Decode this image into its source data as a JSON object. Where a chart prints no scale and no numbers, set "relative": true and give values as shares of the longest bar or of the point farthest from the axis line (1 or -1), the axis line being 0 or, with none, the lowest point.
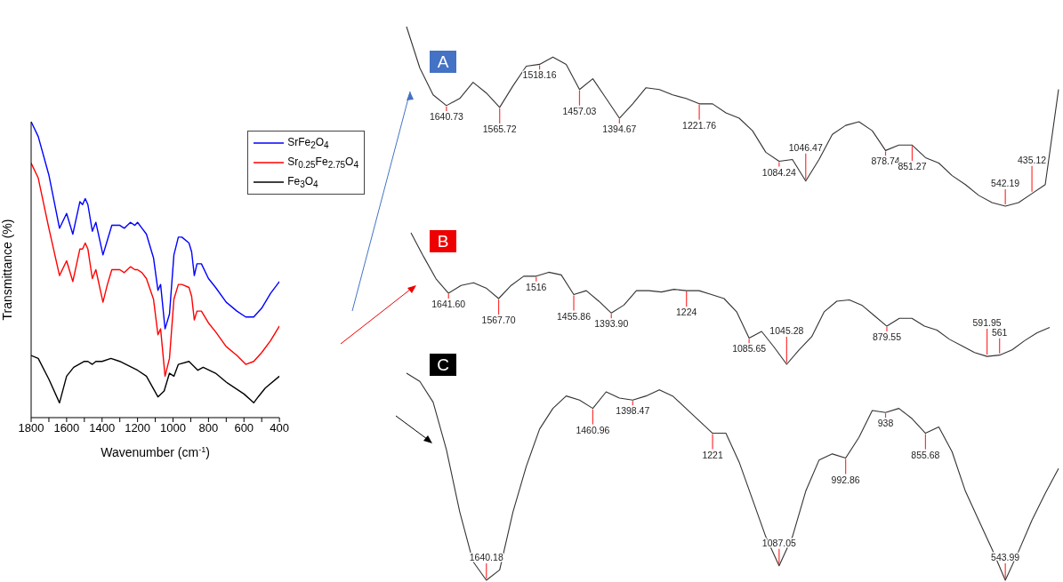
{
  "chart_data": [
    {
      "type": "line",
      "xlabel": "Wavenumber (cm$^{-1}$)",
      "ylabel": "Transmittance (%)",
      "relative": true,
      "legend": "top right",
      "xlim": [
        1800,
        400
      ],
      "xticks": [
        1800,
        {
          "value": 1700,
          "label": null
        },
        1600,
        {
          "value": 1500,
          "label": null
        },
        1400,
        {
          "value": 1300,
          "label": null
        },
        1200,
        {
          "value": 1100,
          "label": null
        },
        1000,
        {
          "value": 900,
          "label": null
        },
        800,
        {
          "value": 700,
          "label": null
        },
        600,
        {
          "value": 500,
          "label": null
        },
        400
      ],
      "series": [
        {
          "name": "SrFe$_{2}$O$_{4}$",
          "color": "#0000ff",
          "x": [
            1800,
            1760,
            1700,
            1640,
            1600,
            1565,
            1525,
            1510,
            1495,
            1480,
            1455,
            1435,
            1395,
            1370,
            1345,
            1300,
            1275,
            1240,
            1215,
            1200,
            1175,
            1150,
            1110,
            1085,
            1070,
            1045,
            1020,
            995,
            970,
            950,
            910,
            895,
            880,
            865,
            840,
            800,
            760,
            700,
            640,
            590,
            545,
            500,
            450,
            400
          ],
          "values": [
            1.0,
            0.95,
            0.82,
            0.64,
            0.69,
            0.62,
            0.73,
            0.72,
            0.74,
            0.72,
            0.63,
            0.66,
            0.55,
            0.6,
            0.65,
            0.65,
            0.64,
            0.66,
            0.65,
            0.66,
            0.64,
            0.62,
            0.54,
            0.43,
            0.45,
            0.3,
            0.35,
            0.55,
            0.61,
            0.61,
            0.59,
            0.56,
            0.48,
            0.52,
            0.52,
            0.47,
            0.44,
            0.39,
            0.36,
            0.34,
            0.34,
            0.37,
            0.42,
            0.46
          ]
        },
        {
          "name": "Sr$_{0.25}$Fe$_{2.75}$O$_{4}$",
          "color": "#ff0000",
          "x": [
            1800,
            1760,
            1700,
            1640,
            1600,
            1565,
            1525,
            1510,
            1495,
            1480,
            1455,
            1435,
            1395,
            1370,
            1345,
            1300,
            1275,
            1240,
            1215,
            1200,
            1175,
            1150,
            1110,
            1085,
            1070,
            1045,
            1020,
            995,
            970,
            950,
            910,
            895,
            880,
            865,
            840,
            800,
            760,
            700,
            640,
            590,
            545,
            500,
            450,
            400
          ],
          "values": [
            0.86,
            0.81,
            0.64,
            0.48,
            0.53,
            0.46,
            0.57,
            0.57,
            0.59,
            0.57,
            0.47,
            0.5,
            0.39,
            0.45,
            0.5,
            0.5,
            0.49,
            0.51,
            0.5,
            0.5,
            0.49,
            0.47,
            0.4,
            0.28,
            0.3,
            0.14,
            0.2,
            0.4,
            0.45,
            0.45,
            0.44,
            0.41,
            0.33,
            0.36,
            0.36,
            0.32,
            0.29,
            0.24,
            0.21,
            0.18,
            0.19,
            0.22,
            0.26,
            0.31
          ]
        },
        {
          "name": "Fe$_{3}$O$_{4}$",
          "color": "#000000",
          "x": [
            1800,
            1760,
            1700,
            1640,
            1600,
            1560,
            1500,
            1480,
            1455,
            1435,
            1400,
            1350,
            1300,
            1200,
            1150,
            1085,
            1050,
            1020,
            995,
            970,
            910,
            860,
            830,
            760,
            700,
            600,
            545,
            520,
            480,
            400
          ],
          "values": [
            0.21,
            0.2,
            0.13,
            0.05,
            0.14,
            0.17,
            0.19,
            0.19,
            0.18,
            0.19,
            0.19,
            0.2,
            0.19,
            0.16,
            0.14,
            0.07,
            0.09,
            0.15,
            0.14,
            0.18,
            0.19,
            0.16,
            0.17,
            0.15,
            0.12,
            0.08,
            0.05,
            0.07,
            0.1,
            0.14
          ]
        }
      ]
    },
    {
      "type": "line",
      "title": "A",
      "relative": true,
      "categories": [
        null,
        null,
        null,
        "1640.73",
        null,
        null,
        null,
        "1565.72",
        null,
        null,
        "1518.16",
        null,
        null,
        "1457.03",
        null,
        null,
        "1394.67",
        null,
        null,
        null,
        null,
        null,
        "1221.76",
        null,
        null,
        null,
        null,
        null,
        "1084.24",
        null,
        "1046.47",
        null,
        null,
        null,
        null,
        null,
        "878.74",
        null,
        "851.27",
        null,
        null,
        null,
        null,
        null,
        null,
        "542.19",
        null,
        "435.12",
        null,
        null
      ],
      "series": [
        {
          "color": "#333333",
          "values": [
            1.0,
            0.77,
            0.62,
            0.56,
            0.6,
            0.69,
            0.63,
            0.55,
            0.67,
            0.78,
            0.79,
            0.83,
            0.79,
            0.65,
            0.71,
            0.6,
            0.49,
            0.57,
            0.66,
            0.65,
            0.62,
            0.6,
            0.57,
            0.57,
            0.52,
            0.49,
            0.42,
            0.3,
            0.25,
            0.26,
            0.14,
            0.26,
            0.4,
            0.45,
            0.47,
            0.42,
            0.31,
            0.34,
            0.34,
            0.27,
            0.24,
            0.17,
            0.12,
            0.06,
            0.02,
            0,
            0.02,
            0.07,
            0.12,
            0.65
          ]
        }
      ]
    },
    {
      "type": "line",
      "title": "B",
      "relative": true,
      "categories": [
        null,
        null,
        null,
        "1641.60",
        null,
        null,
        null,
        "1567.70",
        null,
        null,
        "1516",
        null,
        null,
        "1455.86",
        null,
        null,
        "1393.90",
        null,
        null,
        null,
        null,
        null,
        "1224",
        null,
        null,
        null,
        null,
        "1085.65",
        null,
        null,
        "1045.28",
        null,
        null,
        null,
        null,
        null,
        null,
        null,
        "879.55",
        null,
        null,
        null,
        null,
        null,
        null,
        null,
        "591.95",
        "561",
        null,
        null,
        null,
        null
      ],
      "series": [
        {
          "color": "#333333",
          "values": [
            1.0,
            0.82,
            0.65,
            0.54,
            0.6,
            0.62,
            0.58,
            0.5,
            0.6,
            0.67,
            0.67,
            0.7,
            0.68,
            0.53,
            0.56,
            0.48,
            0.39,
            0.45,
            0.56,
            0.56,
            0.55,
            0.57,
            0.56,
            0.56,
            0.53,
            0.5,
            0.4,
            0.2,
            0.25,
            0.13,
            0,
            0.11,
            0.21,
            0.4,
            0.48,
            0.49,
            0.45,
            0.37,
            0.29,
            0.35,
            0.35,
            0.29,
            0.26,
            0.19,
            0.14,
            0.09,
            0.06,
            0.07,
            0.11,
            0.18,
            0.24,
            0.28
          ]
        }
      ]
    },
    {
      "type": "line",
      "title": "C",
      "relative": true,
      "categories": [
        null,
        null,
        null,
        null,
        null,
        null,
        "1640.18",
        null,
        null,
        null,
        null,
        null,
        null,
        null,
        "1460.96",
        null,
        null,
        "1398.47",
        null,
        null,
        null,
        null,
        null,
        "1221",
        null,
        null,
        null,
        null,
        "1087.05",
        null,
        null,
        null,
        null,
        "992.86",
        null,
        null,
        "938",
        null,
        null,
        "855.68",
        null,
        null,
        null,
        null,
        null,
        "543.99",
        null,
        null,
        null,
        null
      ],
      "series": [
        {
          "color": "#333333",
          "values": [
            1.0,
            0.96,
            0.86,
            0.63,
            0.33,
            0.09,
            0,
            0.05,
            0.33,
            0.55,
            0.73,
            0.83,
            0.89,
            0.87,
            0.83,
            0.91,
            0.88,
            0.87,
            0.89,
            0.92,
            0.89,
            0.83,
            0.77,
            0.71,
            0.71,
            0.57,
            0.39,
            0.21,
            0.07,
            0.21,
            0.43,
            0.58,
            0.61,
            0.59,
            0.69,
            0.82,
            0.81,
            0.83,
            0.78,
            0.71,
            0.74,
            0.62,
            0.43,
            0.29,
            0.15,
            0,
            0.14,
            0.29,
            0.42,
            0.54
          ]
        }
      ]
    }
  ]
}
